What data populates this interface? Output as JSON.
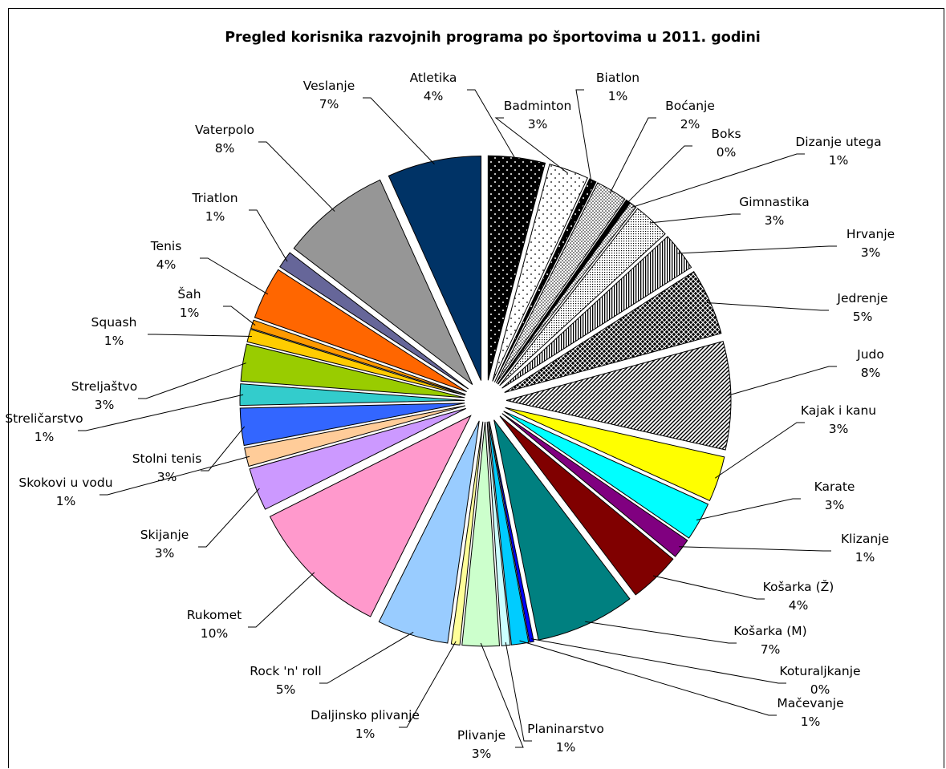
{
  "chart_data": {
    "type": "pie",
    "title": "Pregled korisnika razvojnih programa po športovima u 2011. godini",
    "exploded": true,
    "slices": [
      {
        "name": "Atletika",
        "label": "4%",
        "value": 4.0,
        "color": "#000000",
        "pattern": "dots-white-on-black"
      },
      {
        "name": "Badminton",
        "label": "3%",
        "value": 2.8,
        "color": "#ffffff",
        "pattern": "dots-sparse"
      },
      {
        "name": "Biatlon",
        "label": "1%",
        "value": 0.5,
        "color": "#000000",
        "pattern": "dots-white-on-black"
      },
      {
        "name": "Boćanje",
        "label": "2%",
        "value": 2.2,
        "color": "#ffffff",
        "pattern": "dots-dense"
      },
      {
        "name": "Boks",
        "label": "0%",
        "value": 0.3,
        "color": "#000000",
        "pattern": "solid"
      },
      {
        "name": "Dizanje utega",
        "label": "1%",
        "value": 0.5,
        "color": "#ffffff",
        "pattern": "dots-dense"
      },
      {
        "name": "Gimnastika",
        "label": "3%",
        "value": 2.6,
        "color": "#ffffff",
        "pattern": "grid-fine"
      },
      {
        "name": "Hrvanje",
        "label": "3%",
        "value": 2.7,
        "color": "#ffffff",
        "pattern": "vertical-lines"
      },
      {
        "name": "Jedrenje",
        "label": "5%",
        "value": 4.7,
        "color": "#ffffff",
        "pattern": "crosshatch-dark"
      },
      {
        "name": "Judo",
        "label": "8%",
        "value": 7.6,
        "color": "#ffffff",
        "pattern": "diagonal-lines"
      },
      {
        "name": "Kajak i kanu",
        "label": "3%",
        "value": 3.2,
        "color": "#ffff00",
        "pattern": "solid"
      },
      {
        "name": "Karate",
        "label": "3%",
        "value": 2.7,
        "color": "#00ffff",
        "pattern": "solid"
      },
      {
        "name": "Klizanje",
        "label": "1%",
        "value": 1.4,
        "color": "#800080",
        "pattern": "solid"
      },
      {
        "name": "Košarka (Ž)",
        "label": "4%",
        "value": 3.6,
        "color": "#800000",
        "pattern": "solid"
      },
      {
        "name": "Košarka (M)",
        "label": "7%",
        "value": 7.0,
        "color": "#008080",
        "pattern": "solid"
      },
      {
        "name": "Koturaljkanje",
        "label": "0%",
        "value": 0.3,
        "color": "#0000ff",
        "pattern": "solid"
      },
      {
        "name": "Mačevanje",
        "label": "1%",
        "value": 1.2,
        "color": "#00ccff",
        "pattern": "solid"
      },
      {
        "name": "Planinarstvo",
        "label": "1%",
        "value": 0.6,
        "color": "#ccffff",
        "pattern": "solid"
      },
      {
        "name": "Plivanje",
        "label": "3%",
        "value": 2.6,
        "color": "#ccffcc",
        "pattern": "solid"
      },
      {
        "name": "Daljinsko plivanje",
        "label": "1%",
        "value": 0.6,
        "color": "#ffff99",
        "pattern": "solid"
      },
      {
        "name": "Rock 'n' roll",
        "label": "5%",
        "value": 5.0,
        "color": "#99ccff",
        "pattern": "solid"
      },
      {
        "name": "Rukomet",
        "label": "10%",
        "value": 10.0,
        "color": "#ff99cc",
        "pattern": "solid"
      },
      {
        "name": "Skijanje",
        "label": "3%",
        "value": 3.0,
        "color": "#cc99ff",
        "pattern": "solid"
      },
      {
        "name": "Skokovi u vodu",
        "label": "1%",
        "value": 1.3,
        "color": "#ffcc99",
        "pattern": "solid"
      },
      {
        "name": "Stolni tenis",
        "label": "3%",
        "value": 2.6,
        "color": "#3366ff",
        "pattern": "solid"
      },
      {
        "name": "Streličarstvo",
        "label": "1%",
        "value": 1.5,
        "color": "#33cccc",
        "pattern": "solid"
      },
      {
        "name": "Streljaštvo",
        "label": "3%",
        "value": 2.6,
        "color": "#99cc00",
        "pattern": "solid"
      },
      {
        "name": "Squash",
        "label": "1%",
        "value": 0.9,
        "color": "#ffcc00",
        "pattern": "solid"
      },
      {
        "name": "Šah",
        "label": "1%",
        "value": 0.6,
        "color": "#ff9900",
        "pattern": "solid"
      },
      {
        "name": "Tenis",
        "label": "4%",
        "value": 3.7,
        "color": "#ff6600",
        "pattern": "solid"
      },
      {
        "name": "Triatlon",
        "label": "1%",
        "value": 1.2,
        "color": "#666699",
        "pattern": "solid"
      },
      {
        "name": "Vaterpolo",
        "label": "8%",
        "value": 7.7,
        "color": "#969696",
        "pattern": "solid"
      },
      {
        "name": "Veslanje",
        "label": "7%",
        "value": 6.6,
        "color": "#003366",
        "pattern": "solid"
      }
    ]
  }
}
